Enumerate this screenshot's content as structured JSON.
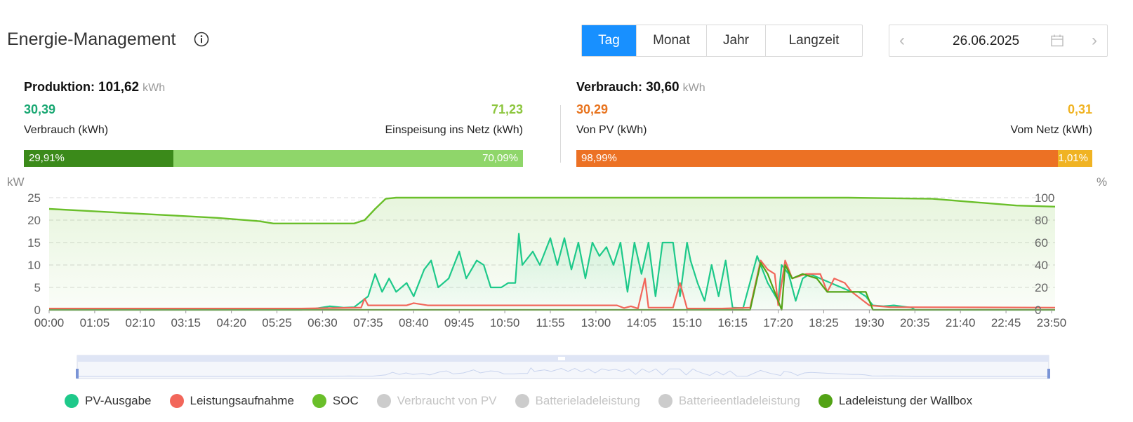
{
  "header": {
    "title": "Energie-Management",
    "tabs": [
      {
        "label": "Tag",
        "active": true
      },
      {
        "label": "Monat",
        "active": false
      },
      {
        "label": "Jahr",
        "active": false
      },
      {
        "label": "Langzeit",
        "active": false
      }
    ],
    "date": "26.06.2025"
  },
  "production": {
    "label": "Produktion:",
    "value": "101,62",
    "unit": "kWh",
    "left_value": "30,39",
    "left_label": "Verbrauch (kWh)",
    "right_value": "71,23",
    "right_label": "Einspeisung ins Netz (kWh)",
    "bar_left_text": "29,91%",
    "bar_right_text": "70,09%",
    "bar_left_percent": 29.91
  },
  "consumption": {
    "label": "Verbrauch:",
    "value": "30,60",
    "unit": "kWh",
    "left_value": "30,29",
    "left_label": "Von PV (kWh)",
    "right_value": "0,31",
    "right_label": "Vom Netz (kWh)",
    "bar_left_text": "98,99%",
    "bar_right_text": "1,01%",
    "bar_left_percent": 98.99
  },
  "colors": {
    "pv": "#1ec98a",
    "load": "#f2665a",
    "soc": "#6abf2a",
    "wallbox": "#53a316",
    "prod_dark": "#3b8a1a",
    "prod_light": "#8fd66a",
    "cons_orange": "#ec7124",
    "cons_yellow": "#f0b323",
    "green_text": "#1aa873",
    "lime_text": "#8dc63f",
    "orange_text": "#e8741f",
    "yellow_text": "#f0b323",
    "disabled": "#cccccc"
  },
  "chart_data": {
    "type": "line",
    "x_unit": "time",
    "x_range": [
      "00:00",
      "23:55"
    ],
    "x_ticks": [
      "00:00",
      "01:05",
      "02:10",
      "03:15",
      "04:20",
      "05:25",
      "06:30",
      "07:35",
      "08:40",
      "09:45",
      "10:50",
      "11:55",
      "13:00",
      "14:05",
      "15:10",
      "16:15",
      "17:20",
      "18:25",
      "19:30",
      "20:35",
      "21:40",
      "22:45",
      "23:50"
    ],
    "y_left": {
      "label": "kW",
      "ticks": [
        "0",
        "5",
        "10",
        "15",
        "20",
        "25"
      ],
      "range": [
        0,
        25
      ]
    },
    "y_right": {
      "label": "%",
      "ticks": [
        "0",
        "20",
        "40",
        "60",
        "80",
        "100"
      ],
      "range": [
        0,
        100
      ]
    },
    "grid": true,
    "series": [
      {
        "name": "PV-Ausgabe",
        "axis": "left",
        "points": [
          [
            "00:00",
            0
          ],
          [
            "06:00",
            0
          ],
          [
            "06:20",
            0.3
          ],
          [
            "06:40",
            0.8
          ],
          [
            "07:00",
            0.5
          ],
          [
            "07:15",
            0.6
          ],
          [
            "07:35",
            3
          ],
          [
            "07:45",
            8
          ],
          [
            "07:55",
            4
          ],
          [
            "08:05",
            7
          ],
          [
            "08:15",
            4
          ],
          [
            "08:30",
            6
          ],
          [
            "08:40",
            3
          ],
          [
            "08:55",
            9
          ],
          [
            "09:05",
            11
          ],
          [
            "09:15",
            5
          ],
          [
            "09:30",
            7
          ],
          [
            "09:45",
            13
          ],
          [
            "09:55",
            7
          ],
          [
            "10:10",
            11
          ],
          [
            "10:20",
            10
          ],
          [
            "10:30",
            5
          ],
          [
            "10:45",
            5
          ],
          [
            "10:55",
            6
          ],
          [
            "11:05",
            6
          ],
          [
            "11:10",
            17
          ],
          [
            "11:15",
            10
          ],
          [
            "11:30",
            13
          ],
          [
            "11:40",
            10
          ],
          [
            "11:55",
            16
          ],
          [
            "12:05",
            10
          ],
          [
            "12:15",
            16
          ],
          [
            "12:25",
            9
          ],
          [
            "12:35",
            15
          ],
          [
            "12:45",
            7
          ],
          [
            "12:55",
            15
          ],
          [
            "13:05",
            12
          ],
          [
            "13:15",
            14
          ],
          [
            "13:25",
            10
          ],
          [
            "13:35",
            15
          ],
          [
            "13:45",
            4
          ],
          [
            "13:55",
            15
          ],
          [
            "14:05",
            8
          ],
          [
            "14:15",
            15
          ],
          [
            "14:25",
            3
          ],
          [
            "14:35",
            15
          ],
          [
            "14:50",
            15
          ],
          [
            "15:00",
            3
          ],
          [
            "15:10",
            15
          ],
          [
            "15:15",
            11
          ],
          [
            "15:25",
            6
          ],
          [
            "15:35",
            2
          ],
          [
            "15:45",
            10
          ],
          [
            "15:55",
            3
          ],
          [
            "16:05",
            11
          ],
          [
            "16:15",
            0.5
          ],
          [
            "16:30",
            0.4
          ],
          [
            "16:50",
            12
          ],
          [
            "17:05",
            6
          ],
          [
            "17:20",
            2
          ],
          [
            "17:25",
            10
          ],
          [
            "17:35",
            8
          ],
          [
            "17:45",
            2
          ],
          [
            "17:55",
            7
          ],
          [
            "18:05",
            8
          ],
          [
            "18:20",
            7
          ],
          [
            "18:35",
            6
          ],
          [
            "18:50",
            5
          ],
          [
            "19:05",
            4
          ],
          [
            "19:15",
            4
          ],
          [
            "19:25",
            3
          ],
          [
            "19:35",
            1
          ],
          [
            "19:50",
            0.8
          ],
          [
            "20:05",
            1
          ],
          [
            "20:30",
            0.5
          ],
          [
            "20:35",
            0
          ],
          [
            "23:55",
            0
          ]
        ]
      },
      {
        "name": "Leistungsaufnahme",
        "axis": "left",
        "points": [
          [
            "00:00",
            0.3
          ],
          [
            "03:00",
            0.3
          ],
          [
            "06:00",
            0.3
          ],
          [
            "07:25",
            0.5
          ],
          [
            "07:30",
            2.5
          ],
          [
            "07:35",
            1
          ],
          [
            "08:30",
            1
          ],
          [
            "08:40",
            1.5
          ],
          [
            "09:00",
            1
          ],
          [
            "10:00",
            1
          ],
          [
            "13:30",
            1
          ],
          [
            "13:40",
            0.4
          ],
          [
            "13:50",
            0.8
          ],
          [
            "14:00",
            0.3
          ],
          [
            "14:10",
            7
          ],
          [
            "14:15",
            0.5
          ],
          [
            "14:50",
            0.5
          ],
          [
            "15:00",
            6
          ],
          [
            "15:10",
            0.3
          ],
          [
            "16:00",
            0.3
          ],
          [
            "16:40",
            0.5
          ],
          [
            "16:55",
            11
          ],
          [
            "17:05",
            9
          ],
          [
            "17:15",
            8
          ],
          [
            "17:20",
            1
          ],
          [
            "17:30",
            11
          ],
          [
            "17:40",
            7
          ],
          [
            "18:00",
            8
          ],
          [
            "18:20",
            8
          ],
          [
            "18:30",
            4
          ],
          [
            "18:40",
            7
          ],
          [
            "18:55",
            6
          ],
          [
            "19:05",
            4
          ],
          [
            "19:30",
            1
          ],
          [
            "20:00",
            0.6
          ],
          [
            "23:55",
            0.5
          ]
        ]
      },
      {
        "name": "SOC",
        "axis": "right",
        "points": [
          [
            "00:00",
            90
          ],
          [
            "01:00",
            88
          ],
          [
            "02:00",
            86
          ],
          [
            "03:00",
            84
          ],
          [
            "04:00",
            82
          ],
          [
            "05:00",
            79
          ],
          [
            "05:20",
            77
          ],
          [
            "06:00",
            77
          ],
          [
            "07:15",
            77
          ],
          [
            "07:30",
            80
          ],
          [
            "07:45",
            90
          ],
          [
            "08:00",
            99
          ],
          [
            "08:15",
            100
          ],
          [
            "12:00",
            100
          ],
          [
            "13:00",
            100
          ],
          [
            "17:00",
            100
          ],
          [
            "19:00",
            100
          ],
          [
            "21:00",
            99
          ],
          [
            "22:00",
            96
          ],
          [
            "23:00",
            93
          ],
          [
            "23:55",
            92
          ]
        ]
      },
      {
        "name": "Verbraucht von PV",
        "axis": "left",
        "hidden": true,
        "points": []
      },
      {
        "name": "Batterieladeleistung",
        "axis": "left",
        "hidden": true,
        "points": []
      },
      {
        "name": "Batterieentladeleistung",
        "axis": "left",
        "hidden": true,
        "points": []
      },
      {
        "name": "Ladeleistung der Wallbox",
        "axis": "left",
        "points": [
          [
            "00:00",
            0
          ],
          [
            "16:40",
            0
          ],
          [
            "16:55",
            10.5
          ],
          [
            "17:05",
            8
          ],
          [
            "17:15",
            4
          ],
          [
            "17:25",
            0
          ],
          [
            "17:30",
            10
          ],
          [
            "17:40",
            7
          ],
          [
            "17:55",
            8
          ],
          [
            "18:15",
            7
          ],
          [
            "18:30",
            4
          ],
          [
            "19:25",
            4
          ],
          [
            "19:35",
            0
          ],
          [
            "23:55",
            0
          ]
        ]
      }
    ]
  },
  "legend": [
    {
      "name": "PV-Ausgabe",
      "color": "#1ec98a",
      "enabled": true
    },
    {
      "name": "Leistungsaufnahme",
      "color": "#f2665a",
      "enabled": true
    },
    {
      "name": "SOC",
      "color": "#6abf2a",
      "enabled": true
    },
    {
      "name": "Verbraucht von PV",
      "color": "#cccccc",
      "enabled": false
    },
    {
      "name": "Batterieladeleistung",
      "color": "#cccccc",
      "enabled": false
    },
    {
      "name": "Batterieentladeleistung",
      "color": "#cccccc",
      "enabled": false
    },
    {
      "name": "Ladeleistung der Wallbox",
      "color": "#53a316",
      "enabled": true
    }
  ]
}
